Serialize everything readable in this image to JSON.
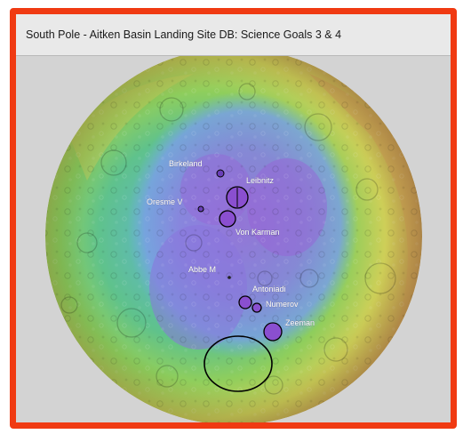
{
  "window": {
    "title": "South Pole - Aitken Basin Landing Site DB: Science Goals 3 & 4"
  },
  "map": {
    "legend_colors": {
      "high": "#c98f4a",
      "mid_high": "#dccf5a",
      "mid": "#8ccf5a",
      "low": "#4fb7a2",
      "lower": "#7fa9e6",
      "lowest": "#9a5fd6"
    },
    "sites": [
      {
        "id": "birkeland",
        "label": "Birkeland"
      },
      {
        "id": "leibnitz",
        "label": "Leibnitz"
      },
      {
        "id": "oresme-v",
        "label": "Oresme V"
      },
      {
        "id": "von-karman",
        "label": "Von Karman"
      },
      {
        "id": "abbe-m",
        "label": "Abbe M"
      },
      {
        "id": "antoniadi",
        "label": "Antoniadi"
      },
      {
        "id": "numerov",
        "label": "Numerov"
      },
      {
        "id": "zeeman",
        "label": "Zeeman"
      }
    ]
  }
}
